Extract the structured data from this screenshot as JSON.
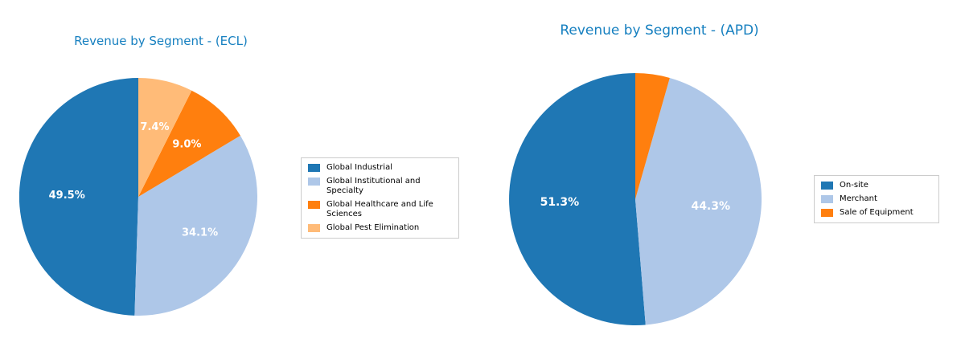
{
  "page": {
    "background": "#ffffff",
    "title_color": "#1780c0",
    "pct_label_color": "#ffffff"
  },
  "chart_data": [
    {
      "type": "pie",
      "title": "Revenue by Segment - (ECL)",
      "labels": [
        "Global Industrial",
        "Global Institutional and Specialty",
        "Global Healthcare and Life Sciences",
        "Global Pest Elimination"
      ],
      "values": [
        49.5,
        34.1,
        9.0,
        7.4
      ],
      "pct_labels": [
        "49.5%",
        "34.1%",
        "9.0%",
        "7.4%"
      ],
      "colors": [
        "#1f77b4",
        "#aec7e8",
        "#ff7f0e",
        "#ffbb78"
      ],
      "start_angle": 90,
      "direction": "counterclockwise",
      "legend_position": "right"
    },
    {
      "type": "pie",
      "title": "Revenue by Segment - (APD)",
      "labels": [
        "On-site",
        "Merchant",
        "Sale of Equipment"
      ],
      "values": [
        51.3,
        44.3,
        4.4
      ],
      "pct_labels": [
        "51.3%",
        "44.3%",
        ""
      ],
      "colors": [
        "#1f77b4",
        "#aec7e8",
        "#ff7f0e"
      ],
      "start_angle": 90,
      "direction": "counterclockwise",
      "legend_position": "right"
    }
  ]
}
